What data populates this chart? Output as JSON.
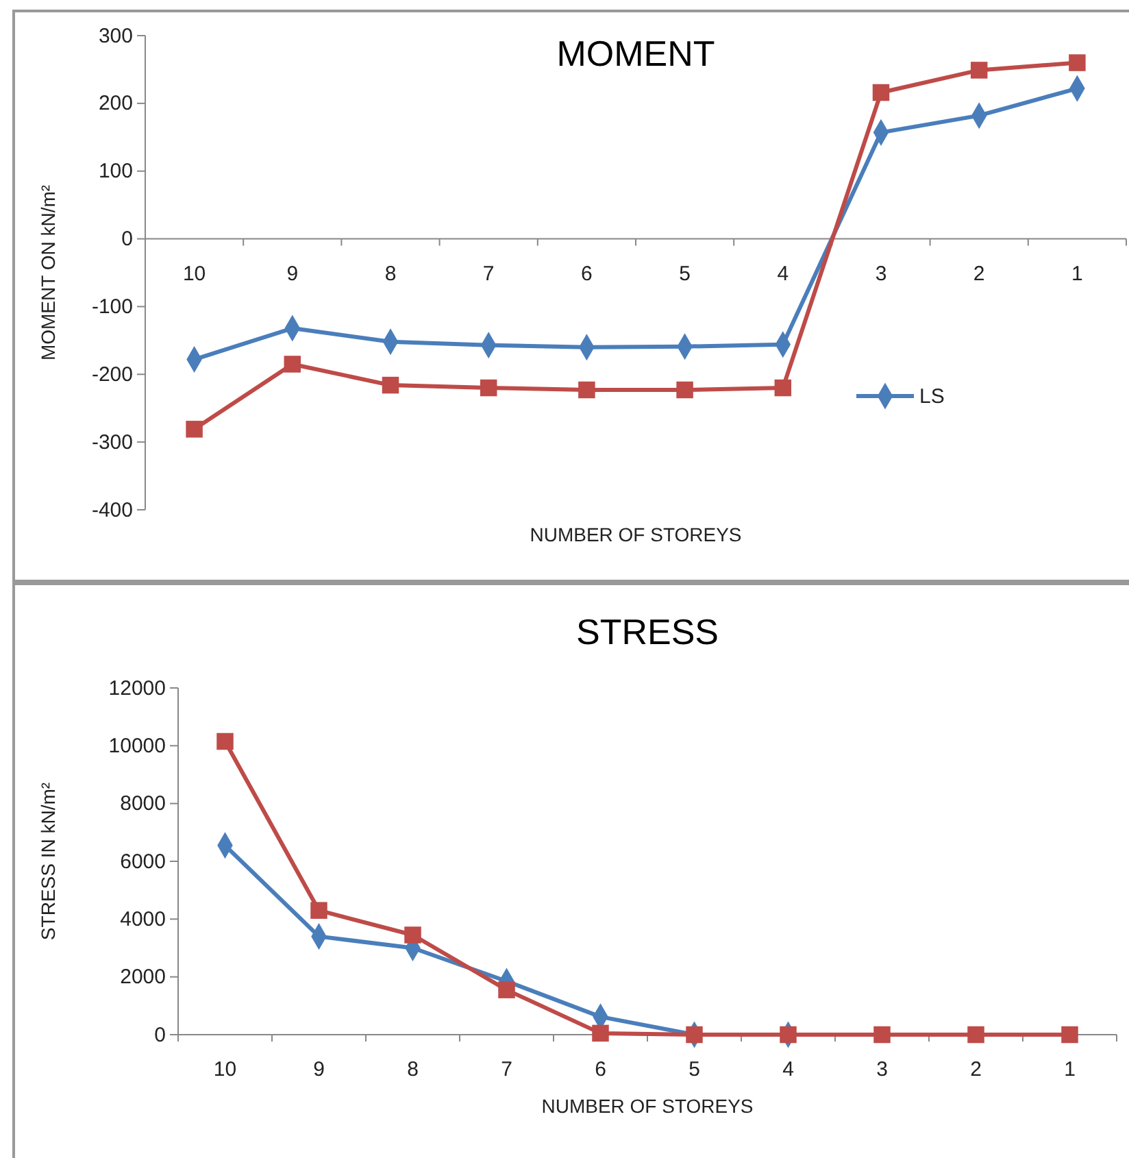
{
  "chart_data": [
    {
      "type": "line",
      "title": "MOMENT",
      "xlabel": "NUMBER OF STOREYS",
      "ylabel": "MOMENT ON kN/m²",
      "categories": [
        "10",
        "9",
        "8",
        "7",
        "6",
        "5",
        "4",
        "3",
        "2",
        "1"
      ],
      "ylim": [
        -400,
        300
      ],
      "yticks": [
        -400,
        -300,
        -200,
        -100,
        0,
        100,
        200,
        300
      ],
      "grid": false,
      "legend": "right",
      "series": [
        {
          "name": "LS",
          "color": "#4a7ebb",
          "marker": "diamond",
          "values": [
            -178,
            -132,
            -152,
            -157,
            -160,
            -159,
            -156,
            157,
            182,
            222
          ]
        },
        {
          "color": "#be4b48",
          "marker": "square",
          "values": [
            -281,
            -185,
            -216,
            -220,
            -223,
            -223,
            -220,
            216,
            249,
            260
          ]
        }
      ]
    },
    {
      "type": "line",
      "title": "STRESS",
      "xlabel": "NUMBER OF STOREYS",
      "ylabel": "STRESS IN kN/m²",
      "categories": [
        "10",
        "9",
        "8",
        "7",
        "6",
        "5",
        "4",
        "3",
        "2",
        "1"
      ],
      "ylim": [
        0,
        12000
      ],
      "yticks": [
        0,
        2000,
        4000,
        6000,
        8000,
        10000,
        12000
      ],
      "grid": false,
      "legend": false,
      "series": [
        {
          "color": "#4a7ebb",
          "marker": "diamond",
          "values": [
            6550,
            3400,
            3000,
            1850,
            620,
            0,
            0,
            null,
            null,
            null
          ]
        },
        {
          "color": "#be4b48",
          "marker": "square",
          "values": [
            10150,
            4300,
            3450,
            1550,
            50,
            0,
            0,
            0,
            0,
            0
          ]
        }
      ]
    }
  ]
}
